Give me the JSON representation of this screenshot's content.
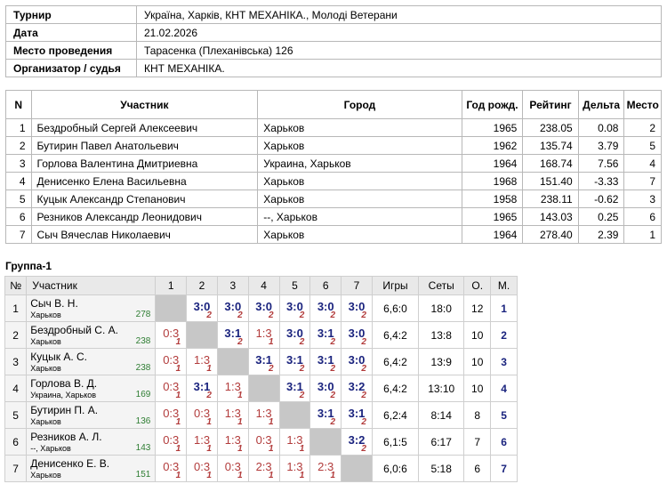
{
  "tournament": {
    "rows": [
      {
        "label": "Турнир",
        "value": "Україна, Харків, КНТ МЕХАНІКА., Молоді Ветерани"
      },
      {
        "label": "Дата",
        "value": "21.02.2026"
      },
      {
        "label": "Место проведения",
        "value": "Тарасенка (Плеханівська) 126"
      },
      {
        "label": "Организатор / судья",
        "value": "КНТ МЕХАНІКА."
      }
    ]
  },
  "participants": {
    "headers": {
      "n": "N",
      "name": "Участник",
      "city": "Город",
      "year": "Год рожд.",
      "rating": "Рейтинг",
      "delta": "Дельта",
      "place": "Место"
    },
    "rows": [
      {
        "n": "1",
        "name": "Бездробный Сергей Алексеевич",
        "city": "Харьков",
        "year": "1965",
        "rating": "238.05",
        "delta": "0.08",
        "place": "2"
      },
      {
        "n": "2",
        "name": "Бутирин Павел Анатольевич",
        "city": "Харьков",
        "year": "1962",
        "rating": "135.74",
        "delta": "3.79",
        "place": "5"
      },
      {
        "n": "3",
        "name": "Горлова Валентина Дмитриевна",
        "city": "Украина, Харьков",
        "year": "1964",
        "rating": "168.74",
        "delta": "7.56",
        "place": "4"
      },
      {
        "n": "4",
        "name": "Денисенко Елена Васильевна",
        "city": "Харьков",
        "year": "1968",
        "rating": "151.40",
        "delta": "-3.33",
        "place": "7"
      },
      {
        "n": "5",
        "name": "Куцык Александр Степанович",
        "city": "Харьков",
        "year": "1958",
        "rating": "238.11",
        "delta": "-0.62",
        "place": "3"
      },
      {
        "n": "6",
        "name": "Резников Александр Леонидович",
        "city": "--, Харьков",
        "year": "1965",
        "rating": "143.03",
        "delta": "0.25",
        "place": "6"
      },
      {
        "n": "7",
        "name": "Сыч Вячеслав Николаевич",
        "city": "Харьков",
        "year": "1964",
        "rating": "278.40",
        "delta": "2.39",
        "place": "1"
      }
    ]
  },
  "group": {
    "title": "Группа-1",
    "headers": {
      "no": "№",
      "player": "Участник",
      "cols": [
        "1",
        "2",
        "3",
        "4",
        "5",
        "6",
        "7"
      ],
      "games": "Игры",
      "sets": "Сеты",
      "points": "О.",
      "place": "М."
    },
    "rows": [
      {
        "no": "1",
        "name": "Сыч В. Н.",
        "city": "Харьков",
        "rating": "278",
        "cells": [
          null,
          {
            "score": "3:0",
            "pts": "2"
          },
          {
            "score": "3:0",
            "pts": "2"
          },
          {
            "score": "3:0",
            "pts": "2"
          },
          {
            "score": "3:0",
            "pts": "2"
          },
          {
            "score": "3:0",
            "pts": "2"
          },
          {
            "score": "3:0",
            "pts": "2"
          }
        ],
        "games": "6,6:0",
        "sets": "18:0",
        "points": "12",
        "place": "1"
      },
      {
        "no": "2",
        "name": "Бездробный С. А.",
        "city": "Харьков",
        "rating": "238",
        "cells": [
          {
            "score": "0:3",
            "pts": "1"
          },
          null,
          {
            "score": "3:1",
            "pts": "2"
          },
          {
            "score": "1:3",
            "pts": "1"
          },
          {
            "score": "3:0",
            "pts": "2"
          },
          {
            "score": "3:1",
            "pts": "2"
          },
          {
            "score": "3:0",
            "pts": "2"
          }
        ],
        "games": "6,4:2",
        "sets": "13:8",
        "points": "10",
        "place": "2"
      },
      {
        "no": "3",
        "name": "Куцык А. С.",
        "city": "Харьков",
        "rating": "238",
        "cells": [
          {
            "score": "0:3",
            "pts": "1"
          },
          {
            "score": "1:3",
            "pts": "1"
          },
          null,
          {
            "score": "3:1",
            "pts": "2"
          },
          {
            "score": "3:1",
            "pts": "2"
          },
          {
            "score": "3:1",
            "pts": "2"
          },
          {
            "score": "3:0",
            "pts": "2"
          }
        ],
        "games": "6,4:2",
        "sets": "13:9",
        "points": "10",
        "place": "3"
      },
      {
        "no": "4",
        "name": "Горлова В. Д.",
        "city": "Украина, Харьков",
        "rating": "169",
        "cells": [
          {
            "score": "0:3",
            "pts": "1"
          },
          {
            "score": "3:1",
            "pts": "2"
          },
          {
            "score": "1:3",
            "pts": "1"
          },
          null,
          {
            "score": "3:1",
            "pts": "2"
          },
          {
            "score": "3:0",
            "pts": "2"
          },
          {
            "score": "3:2",
            "pts": "2"
          }
        ],
        "games": "6,4:2",
        "sets": "13:10",
        "points": "10",
        "place": "4"
      },
      {
        "no": "5",
        "name": "Бутирин П. А.",
        "city": "Харьков",
        "rating": "136",
        "cells": [
          {
            "score": "0:3",
            "pts": "1"
          },
          {
            "score": "0:3",
            "pts": "1"
          },
          {
            "score": "1:3",
            "pts": "1"
          },
          {
            "score": "1:3",
            "pts": "1"
          },
          null,
          {
            "score": "3:1",
            "pts": "2"
          },
          {
            "score": "3:1",
            "pts": "2"
          }
        ],
        "games": "6,2:4",
        "sets": "8:14",
        "points": "8",
        "place": "5"
      },
      {
        "no": "6",
        "name": "Резников А. Л.",
        "city": "--, Харьков",
        "rating": "143",
        "cells": [
          {
            "score": "0:3",
            "pts": "1"
          },
          {
            "score": "1:3",
            "pts": "1"
          },
          {
            "score": "1:3",
            "pts": "1"
          },
          {
            "score": "0:3",
            "pts": "1"
          },
          {
            "score": "1:3",
            "pts": "1"
          },
          null,
          {
            "score": "3:2",
            "pts": "2"
          }
        ],
        "games": "6,1:5",
        "sets": "6:17",
        "points": "7",
        "place": "6"
      },
      {
        "no": "7",
        "name": "Денисенко Е. В.",
        "city": "Харьков",
        "rating": "151",
        "cells": [
          {
            "score": "0:3",
            "pts": "1"
          },
          {
            "score": "0:3",
            "pts": "1"
          },
          {
            "score": "0:3",
            "pts": "1"
          },
          {
            "score": "2:3",
            "pts": "1"
          },
          {
            "score": "1:3",
            "pts": "1"
          },
          {
            "score": "2:3",
            "pts": "1"
          },
          null
        ],
        "games": "6,0:6",
        "sets": "5:18",
        "points": "6",
        "place": "7"
      }
    ]
  }
}
